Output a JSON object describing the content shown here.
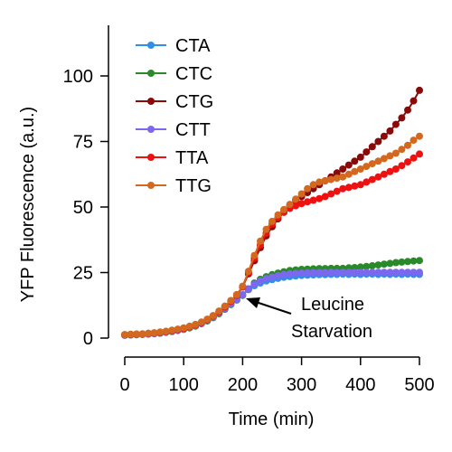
{
  "chart_data": {
    "type": "line",
    "xlabel": "Time (min)",
    "ylabel": "YFP Fluorescence (a.u.)",
    "xlim": [
      0,
      500
    ],
    "ylim": [
      0,
      120
    ],
    "xticks": [
      0,
      100,
      200,
      300,
      400,
      500
    ],
    "yticks": [
      0,
      25,
      50,
      75,
      100
    ],
    "legend_position": "top-left",
    "grid": false,
    "x": [
      0,
      10,
      20,
      30,
      40,
      50,
      60,
      70,
      80,
      90,
      100,
      110,
      120,
      130,
      140,
      150,
      160,
      170,
      180,
      190,
      200,
      210,
      220,
      230,
      240,
      250,
      260,
      270,
      280,
      290,
      300,
      310,
      320,
      330,
      340,
      350,
      360,
      370,
      380,
      390,
      400,
      410,
      420,
      430,
      440,
      450,
      460,
      470,
      480,
      490,
      500
    ],
    "series": [
      {
        "name": "CTA",
        "color": "#2f8fe8",
        "values": [
          1.2,
          1.3,
          1.4,
          1.5,
          1.6,
          1.8,
          2.0,
          2.3,
          2.7,
          3.1,
          3.6,
          4.2,
          4.9,
          5.8,
          6.9,
          8.2,
          9.8,
          11.5,
          13.2,
          14.8,
          16.5,
          18.5,
          20.0,
          21.0,
          21.8,
          22.3,
          22.8,
          23.2,
          23.5,
          23.7,
          23.9,
          24.0,
          24.1,
          24.2,
          24.2,
          24.3,
          24.3,
          24.4,
          24.3,
          24.4,
          24.3,
          24.4,
          24.4,
          24.3,
          24.4,
          24.3,
          24.4,
          24.3,
          24.4,
          24.3,
          24.3
        ]
      },
      {
        "name": "CTC",
        "color": "#2a8a2a",
        "values": [
          1.1,
          1.2,
          1.3,
          1.4,
          1.5,
          1.7,
          1.9,
          2.2,
          2.5,
          2.9,
          3.3,
          3.9,
          4.6,
          5.5,
          6.5,
          7.8,
          9.3,
          11.0,
          12.8,
          14.5,
          16.3,
          18.8,
          21.0,
          22.4,
          23.4,
          24.2,
          24.8,
          25.3,
          25.8,
          26.0,
          26.2,
          26.3,
          26.4,
          26.5,
          26.5,
          26.6,
          26.6,
          26.6,
          26.8,
          26.9,
          27.1,
          27.3,
          27.6,
          27.9,
          28.2,
          28.5,
          28.8,
          29.0,
          29.2,
          29.4,
          29.6
        ]
      },
      {
        "name": "CTG",
        "color": "#8a0a0a",
        "values": [
          1.3,
          1.4,
          1.5,
          1.6,
          1.8,
          2.0,
          2.2,
          2.5,
          2.9,
          3.3,
          3.8,
          4.4,
          5.1,
          6.0,
          7.1,
          8.5,
          10.2,
          12.1,
          14.2,
          16.5,
          19.5,
          24.5,
          29.5,
          34.5,
          39.0,
          42.5,
          45.5,
          48.0,
          50.5,
          52.5,
          54.0,
          55.5,
          57.0,
          58.5,
          60.0,
          61.5,
          63.0,
          64.5,
          66.0,
          67.5,
          69.0,
          71.0,
          73.0,
          75.0,
          77.0,
          79.0,
          81.5,
          84.0,
          87.0,
          90.5,
          94.5
        ]
      },
      {
        "name": "CTT",
        "color": "#7b68ee",
        "values": [
          1.1,
          1.2,
          1.3,
          1.4,
          1.5,
          1.7,
          1.9,
          2.2,
          2.6,
          3.0,
          3.5,
          4.1,
          4.8,
          5.7,
          6.7,
          8.0,
          9.6,
          11.3,
          13.0,
          14.7,
          16.5,
          18.8,
          20.6,
          21.8,
          22.7,
          23.3,
          23.8,
          24.2,
          24.5,
          24.7,
          24.8,
          24.9,
          25.0,
          25.0,
          25.0,
          25.1,
          25.0,
          25.1,
          25.1,
          25.0,
          25.1,
          25.1,
          25.1,
          25.1,
          25.1,
          25.1,
          25.1,
          25.1,
          25.1,
          25.1,
          25.1
        ]
      },
      {
        "name": "TTA",
        "color": "#ee1111",
        "values": [
          1.2,
          1.3,
          1.4,
          1.5,
          1.7,
          1.9,
          2.1,
          2.4,
          2.8,
          3.2,
          3.7,
          4.3,
          5.0,
          5.9,
          7.0,
          8.4,
          10.0,
          11.9,
          14.0,
          16.3,
          19.5,
          25.0,
          30.5,
          35.5,
          40.0,
          43.5,
          46.0,
          48.0,
          49.5,
          50.5,
          51.3,
          52.0,
          52.6,
          53.2,
          54.0,
          55.0,
          56.0,
          57.0,
          57.5,
          58.0,
          58.5,
          59.5,
          60.5,
          61.5,
          62.5,
          63.5,
          64.5,
          65.8,
          67.2,
          68.7,
          70.2
        ]
      },
      {
        "name": "TTG",
        "color": "#d2691e",
        "values": [
          1.3,
          1.4,
          1.5,
          1.6,
          1.8,
          2.0,
          2.3,
          2.6,
          3.0,
          3.4,
          3.9,
          4.5,
          5.2,
          6.1,
          7.2,
          8.6,
          10.3,
          12.2,
          14.3,
          16.6,
          19.8,
          25.5,
          31.5,
          37.0,
          41.5,
          44.5,
          47.0,
          49.0,
          51.0,
          53.0,
          55.0,
          57.0,
          58.5,
          59.5,
          60.0,
          60.5,
          61.0,
          61.5,
          62.5,
          63.5,
          64.5,
          65.5,
          66.5,
          67.5,
          68.5,
          69.5,
          70.5,
          72.0,
          73.5,
          75.5,
          77.0
        ]
      }
    ],
    "annotation": {
      "lines": [
        "Leucine",
        "Starvation"
      ],
      "points_to": {
        "x": 215,
        "y": 15
      }
    }
  }
}
